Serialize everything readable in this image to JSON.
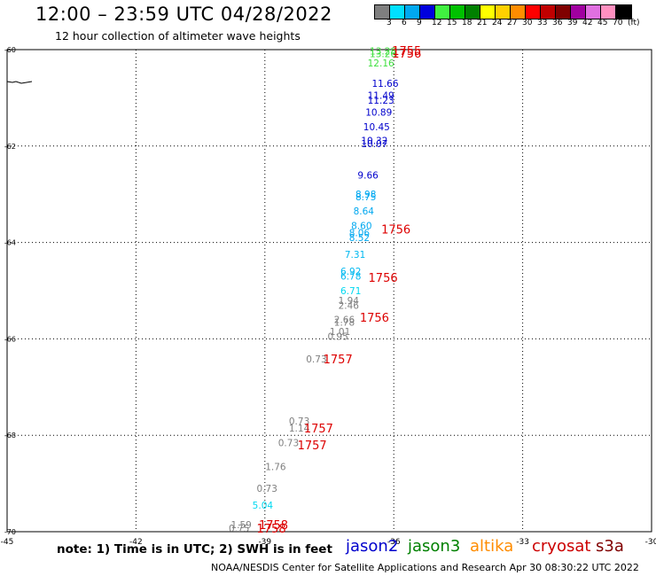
{
  "title": "12:00 – 23:59 UTC 04/28/2022",
  "subtitle": "12 hour collection of altimeter wave heights",
  "legend": {
    "labels": [
      "3",
      "6",
      "9",
      "12",
      "15",
      "18",
      "21",
      "24",
      "27",
      "30",
      "33",
      "36",
      "39",
      "42",
      "45",
      "70",
      "(ft)"
    ],
    "colors": [
      "#7f7f7f",
      "#00e0ff",
      "#00a8f0",
      "#0000dd",
      "#40f040",
      "#00c000",
      "#008000",
      "#ffff00",
      "#ffd000",
      "#ff8c00",
      "#ff0000",
      "#c00000",
      "#800000",
      "#a000a0",
      "#e070e0",
      "#ff90c0",
      "#000000"
    ]
  },
  "note": "note: 1) Time is in UTC; 2) SWH is in feet",
  "satellites": [
    {
      "name": "jason2",
      "color": "#0000cc"
    },
    {
      "name": "jason3",
      "color": "#008000"
    },
    {
      "name": "altika",
      "color": "#ff8c00"
    },
    {
      "name": "cryosat",
      "color": "#cc0000"
    },
    {
      "name": "s3a",
      "color": "#800000"
    }
  ],
  "footer": "NOAA/NESDIS Center for Satellite Applications and Research   Apr 30 08:30:22 UTC 2022",
  "chart_data": {
    "type": "scatter",
    "xlim": [
      -45,
      -30
    ],
    "ylim": [
      -70,
      -60
    ],
    "x_ticks": [
      -45,
      -42,
      -39,
      -36,
      -33,
      -30
    ],
    "y_ticks": [
      -60,
      -62,
      -64,
      -66,
      -68,
      -70
    ],
    "grid": true,
    "swh_labels": [
      {
        "x": -36.25,
        "y": -60.03,
        "value": "13.28",
        "color": "#40e040"
      },
      {
        "x": -36.25,
        "y": -60.08,
        "value": "13.26",
        "color": "#40e040"
      },
      {
        "x": -36.3,
        "y": -60.28,
        "value": "12.16",
        "color": "#40e040"
      },
      {
        "x": -36.2,
        "y": -60.7,
        "value": "11.66",
        "color": "#0000cc"
      },
      {
        "x": -36.3,
        "y": -60.95,
        "value": "11.49",
        "color": "#0000cc"
      },
      {
        "x": -36.3,
        "y": -61.05,
        "value": "11.23",
        "color": "#0000cc"
      },
      {
        "x": -36.35,
        "y": -61.3,
        "value": "10.89",
        "color": "#0000cc"
      },
      {
        "x": -36.4,
        "y": -61.6,
        "value": "10.45",
        "color": "#0000cc"
      },
      {
        "x": -36.45,
        "y": -61.88,
        "value": "10.32",
        "color": "#0000cc"
      },
      {
        "x": -36.45,
        "y": -61.95,
        "value": "10.07",
        "color": "#0000cc"
      },
      {
        "x": -36.6,
        "y": -62.6,
        "value": "9.66",
        "color": "#0000cc"
      },
      {
        "x": -36.65,
        "y": -63.0,
        "value": "8.98",
        "color": "#00a8f0"
      },
      {
        "x": -36.65,
        "y": -63.05,
        "value": "8.75",
        "color": "#00a8f0"
      },
      {
        "x": -36.7,
        "y": -63.35,
        "value": "8.64",
        "color": "#00a8f0"
      },
      {
        "x": -36.75,
        "y": -63.65,
        "value": "8.60",
        "color": "#00a8f0"
      },
      {
        "x": -36.8,
        "y": -63.8,
        "value": "8.06",
        "color": "#00a8f0"
      },
      {
        "x": -36.8,
        "y": -63.9,
        "value": "8.52",
        "color": "#00a8f0"
      },
      {
        "x": -36.9,
        "y": -64.25,
        "value": "7.31",
        "color": "#00b8f0"
      },
      {
        "x": -37.0,
        "y": -64.6,
        "value": "6.92",
        "color": "#00b8f0"
      },
      {
        "x": -37.0,
        "y": -64.7,
        "value": "6.78",
        "color": "#00b8f0"
      },
      {
        "x": -37.0,
        "y": -65.0,
        "value": "6.71",
        "color": "#00d8f0"
      },
      {
        "x": -37.05,
        "y": -65.2,
        "value": "1.94",
        "color": "#7f7f7f"
      },
      {
        "x": -37.05,
        "y": -65.3,
        "value": "2.46",
        "color": "#7f7f7f"
      },
      {
        "x": -37.15,
        "y": -65.6,
        "value": "2.66",
        "color": "#7f7f7f"
      },
      {
        "x": -37.15,
        "y": -65.65,
        "value": "1.78",
        "color": "#7f7f7f"
      },
      {
        "x": -37.25,
        "y": -65.85,
        "value": "1.01",
        "color": "#7f7f7f"
      },
      {
        "x": -37.3,
        "y": -65.95,
        "value": "0.95",
        "color": "#7f7f7f"
      },
      {
        "x": -37.8,
        "y": -66.42,
        "value": "0.73",
        "color": "#7f7f7f"
      },
      {
        "x": -38.2,
        "y": -67.7,
        "value": "0.73",
        "color": "#7f7f7f"
      },
      {
        "x": -38.2,
        "y": -67.85,
        "value": "1.14",
        "color": "#7f7f7f"
      },
      {
        "x": -38.45,
        "y": -68.15,
        "value": "0.73",
        "color": "#7f7f7f"
      },
      {
        "x": -38.75,
        "y": -68.65,
        "value": "1.76",
        "color": "#7f7f7f"
      },
      {
        "x": -38.95,
        "y": -69.1,
        "value": "0.73",
        "color": "#7f7f7f"
      },
      {
        "x": -39.05,
        "y": -69.45,
        "value": "5.04",
        "color": "#00d8f0"
      },
      {
        "x": -39.55,
        "y": -69.85,
        "value": "1.59",
        "color": "#7f7f7f"
      },
      {
        "x": -39.6,
        "y": -69.93,
        "value": "0.75",
        "color": "#7f7f7f"
      }
    ],
    "time_labels": [
      {
        "x": -35.7,
        "y": -60.02,
        "value": "1755"
      },
      {
        "x": -35.7,
        "y": -60.07,
        "value": "1756"
      },
      {
        "x": -35.95,
        "y": -63.72,
        "value": "1756"
      },
      {
        "x": -36.25,
        "y": -64.72,
        "value": "1756"
      },
      {
        "x": -36.45,
        "y": -65.55,
        "value": "1756"
      },
      {
        "x": -37.3,
        "y": -66.42,
        "value": "1757"
      },
      {
        "x": -37.75,
        "y": -67.85,
        "value": "1757"
      },
      {
        "x": -37.9,
        "y": -68.2,
        "value": "1757"
      },
      {
        "x": -38.8,
        "y": -69.85,
        "value": "1758"
      },
      {
        "x": -38.85,
        "y": -69.93,
        "value": "1758"
      }
    ]
  }
}
